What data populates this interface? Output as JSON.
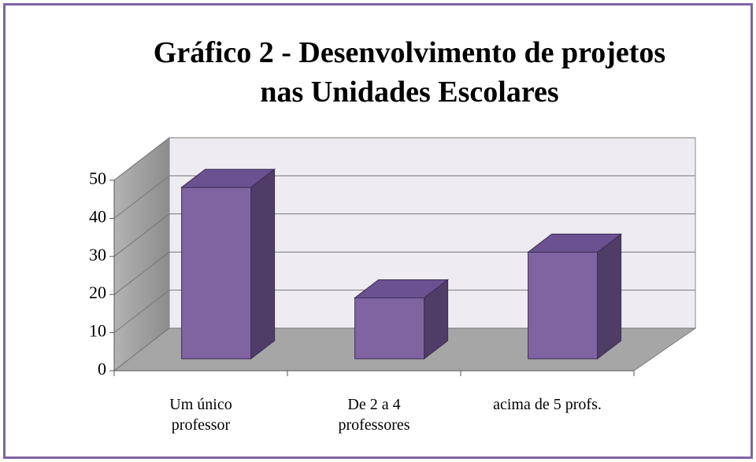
{
  "chart_data": {
    "type": "bar3d",
    "title": "Gráfico 2 - Desenvolvimento de projetos\nnas Unidades Escolares",
    "categories": [
      "Um único\nprofessor",
      "De 2 a 4\nprofessores",
      "acima de 5 profs."
    ],
    "values": [
      45,
      16,
      28
    ],
    "color": "#8064a2",
    "ylim": [
      0,
      50
    ],
    "yticks": [
      0,
      10,
      20,
      30,
      40,
      50
    ],
    "grid": true
  }
}
